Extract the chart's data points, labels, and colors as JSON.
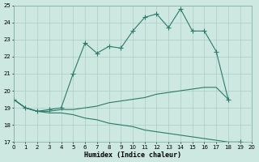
{
  "xlabel": "Humidex (Indice chaleur)",
  "bg_color": "#cde8e0",
  "grid_color": "#aaccC4",
  "line_color": "#2d7a6a",
  "line1_x": [
    0,
    1,
    2,
    3,
    4,
    5,
    6,
    7,
    8,
    9,
    10,
    11,
    12,
    13,
    14,
    15,
    16,
    17,
    18,
    19,
    20
  ],
  "line1_y": [
    19.5,
    19.0,
    18.8,
    18.9,
    19.0,
    21.0,
    22.8,
    22.2,
    22.6,
    22.5,
    23.5,
    24.3,
    24.5,
    23.7,
    24.8,
    23.5,
    23.5,
    22.3,
    19.5,
    null,
    null
  ],
  "line2_x": [
    0,
    1,
    2,
    3,
    4,
    5,
    6,
    7,
    8,
    9,
    10,
    11,
    12,
    13,
    14,
    15,
    16,
    17,
    18,
    19
  ],
  "line2_y": [
    19.5,
    19.0,
    18.8,
    18.8,
    18.9,
    18.9,
    19.0,
    19.1,
    19.3,
    19.4,
    19.5,
    19.6,
    19.8,
    19.9,
    20.0,
    20.1,
    20.2,
    20.2,
    19.5,
    null
  ],
  "line3_x": [
    0,
    1,
    2,
    3,
    4,
    5,
    6,
    7,
    8,
    9,
    10,
    11,
    12,
    13,
    14,
    15,
    16,
    17,
    18,
    19,
    20
  ],
  "line3_y": [
    19.5,
    19.0,
    18.8,
    18.7,
    18.7,
    18.6,
    18.4,
    18.3,
    18.1,
    18.0,
    17.9,
    17.7,
    17.6,
    17.5,
    17.4,
    17.3,
    17.2,
    17.1,
    17.0,
    17.0,
    null
  ],
  "xlim": [
    0,
    20
  ],
  "ylim": [
    17,
    25
  ],
  "yticks": [
    17,
    18,
    19,
    20,
    21,
    22,
    23,
    24,
    25
  ],
  "xticks": [
    0,
    1,
    2,
    3,
    4,
    5,
    6,
    7,
    8,
    9,
    10,
    11,
    12,
    13,
    14,
    15,
    16,
    17,
    18,
    19,
    20
  ]
}
